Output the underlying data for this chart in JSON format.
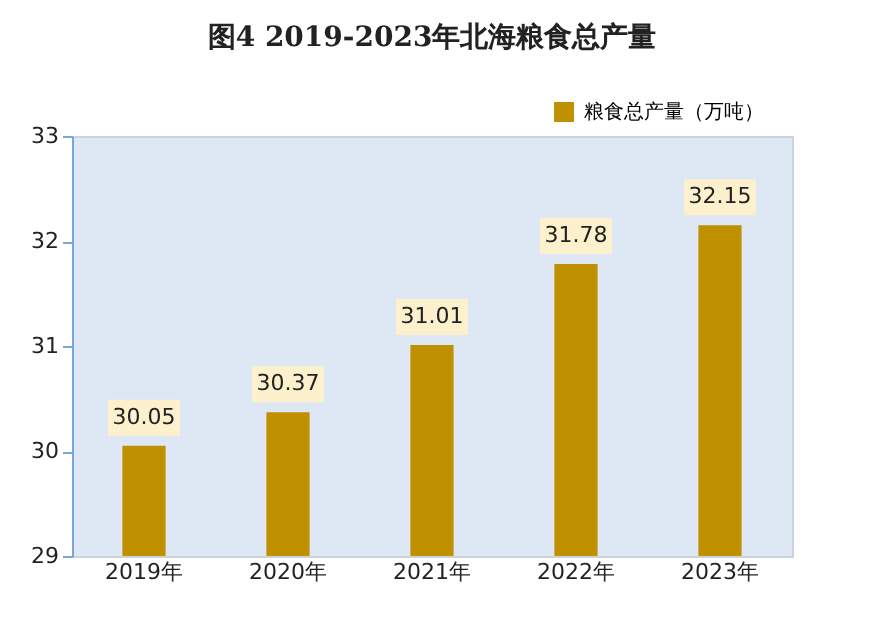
{
  "chart_data": {
    "type": "bar",
    "title": "图4   2019-2023年北海粮食总产量",
    "categories": [
      "2019年",
      "2020年",
      "2021年",
      "2022年",
      "2023年"
    ],
    "series": [
      {
        "name": "粮食总产量（万吨）",
        "color": "#bf9000",
        "values": [
          30.05,
          30.37,
          31.01,
          31.78,
          32.15
        ]
      }
    ],
    "ylim": [
      29,
      33
    ],
    "yticks": [
      29,
      30,
      31,
      32,
      33
    ],
    "grid": false,
    "legend": "top right",
    "data_labels": true
  }
}
